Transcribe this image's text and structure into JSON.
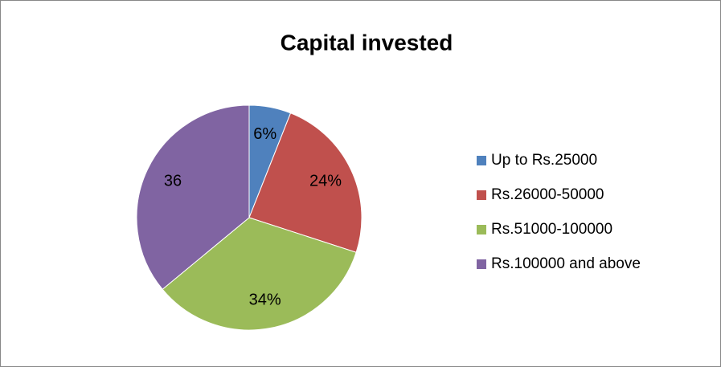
{
  "chart_data": {
    "type": "pie",
    "title": "Capital invested",
    "categories": [
      "Up to Rs.25000",
      "Rs.26000-50000",
      "Rs.51000-100000",
      "Rs.100000 and above"
    ],
    "values": [
      6,
      24,
      34,
      36
    ],
    "value_labels": [
      "6%",
      "24%",
      "34%",
      "36"
    ],
    "colors": [
      "#4f81bd",
      "#c0504d",
      "#9bbb59",
      "#8064a2"
    ],
    "legend": "right"
  }
}
